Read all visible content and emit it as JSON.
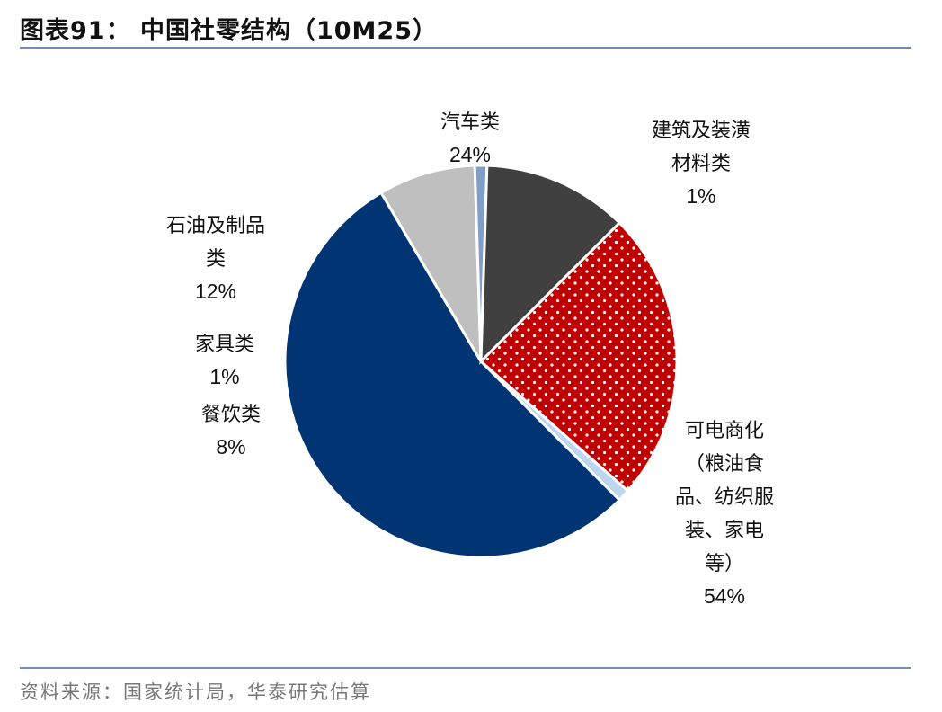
{
  "header": {
    "title": "图表91：  中国社零结构（10M25）"
  },
  "footer": {
    "source": "资料来源：国家统计局，华泰研究估算"
  },
  "colors": {
    "auto": "#c00000",
    "building_materials": "#bdd7ee",
    "other": "#003473",
    "dining": "#bfbfbf",
    "furniture": "#7f9fc8",
    "petroleum": "#404040"
  },
  "chart_data": {
    "type": "pie",
    "title": "图表91：  中国社零结构（10M25）",
    "slices": [
      {
        "key": "auto",
        "label_lines": [
          "汽车类"
        ],
        "value": 24,
        "pct_text": "24%",
        "color": "#c00000",
        "pattern": "dots"
      },
      {
        "key": "building_materials",
        "label_lines": [
          "建筑及装潢",
          "材料类"
        ],
        "value": 1,
        "pct_text": "1%",
        "color": "#bdd7ee"
      },
      {
        "key": "other",
        "label_lines": [
          "可电商化",
          "（粮油食",
          "品、纺织服",
          "装、家电",
          "等）"
        ],
        "value": 54,
        "pct_text": "54%",
        "color": "#003473"
      },
      {
        "key": "dining",
        "label_lines": [
          "餐饮类"
        ],
        "value": 8,
        "pct_text": "8%",
        "color": "#bfbfbf"
      },
      {
        "key": "furniture",
        "label_lines": [
          "家具类"
        ],
        "value": 1,
        "pct_text": "1%",
        "color": "#7f9fc8"
      },
      {
        "key": "petroleum",
        "label_lines": [
          "石油及制品",
          "类"
        ],
        "value": 12,
        "pct_text": "12%",
        "color": "#404040"
      }
    ]
  }
}
